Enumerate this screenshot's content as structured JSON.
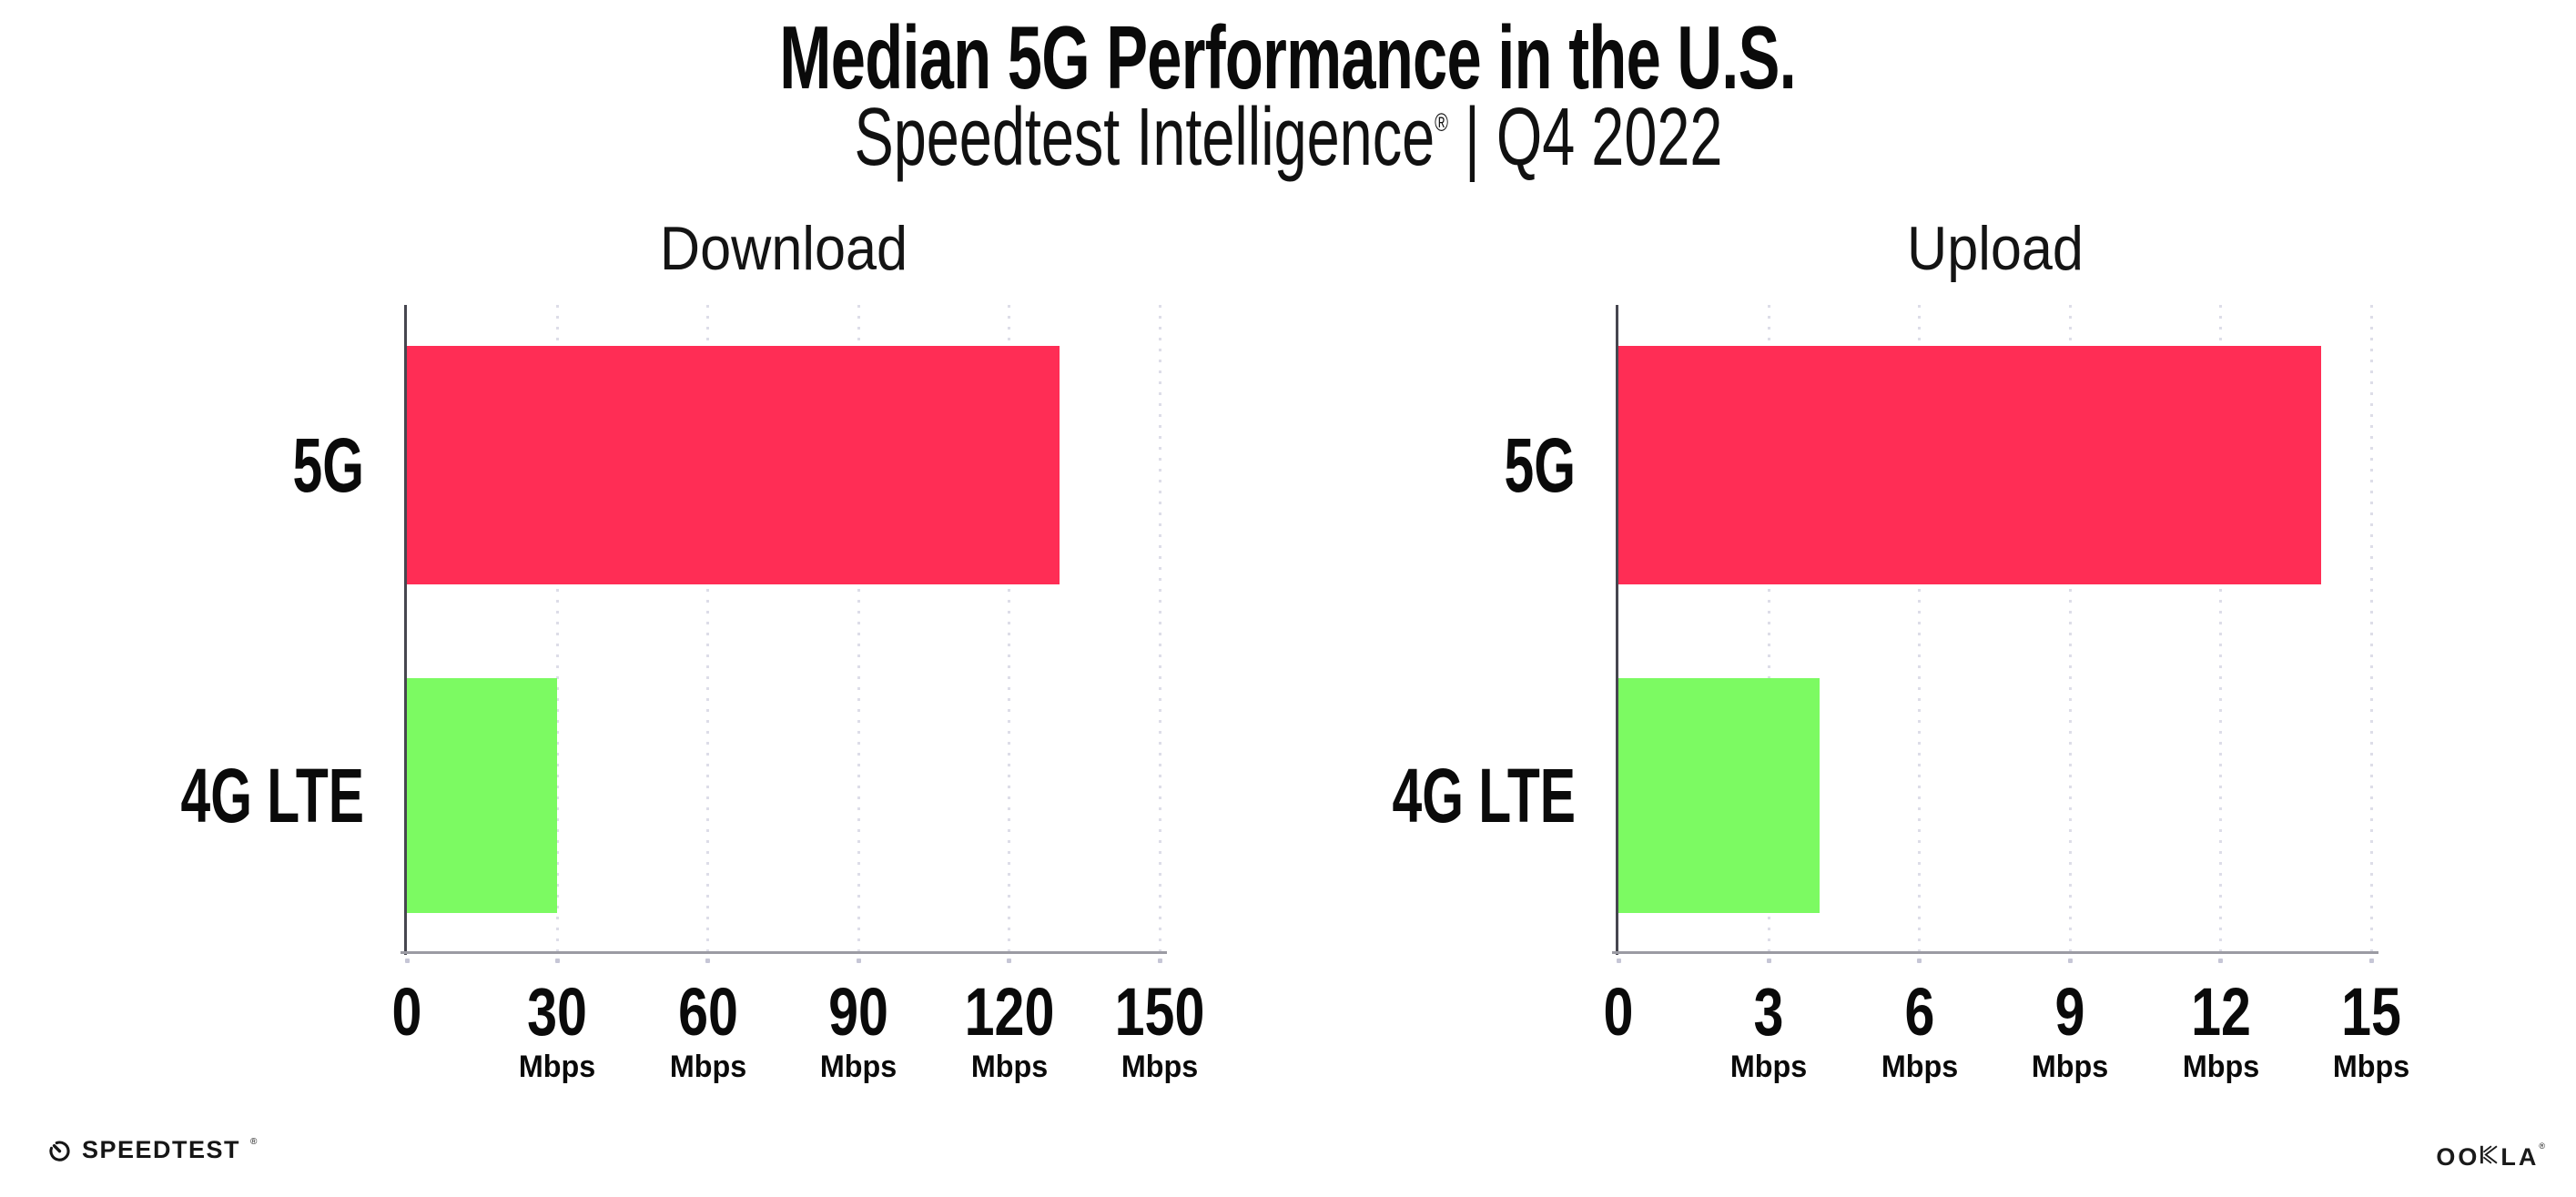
{
  "header": {
    "title": "Median 5G Performance in the U.S.",
    "subtitle_brand": "Speedtest Intelligence",
    "subtitle_registered": "®",
    "subtitle_period": " | Q4 2022"
  },
  "chart_data": [
    {
      "type": "bar",
      "orientation": "horizontal",
      "title": "Download",
      "categories": [
        "5G",
        "4G LTE"
      ],
      "values": [
        130,
        30
      ],
      "unit": "Mbps",
      "xlim": [
        0,
        150
      ],
      "xticks": [
        0,
        30,
        60,
        90,
        120,
        150
      ],
      "xtick_unit": "Mbps",
      "grid": "vertical-dotted",
      "legend": "none",
      "bar_colors": [
        "#FF2D55",
        "#7CFA62"
      ]
    },
    {
      "type": "bar",
      "orientation": "horizontal",
      "title": "Upload",
      "categories": [
        "5G",
        "4G LTE"
      ],
      "values": [
        14,
        4
      ],
      "unit": "Mbps",
      "xlim": [
        0,
        15
      ],
      "xticks": [
        0,
        3,
        6,
        9,
        12,
        15
      ],
      "xtick_unit": "Mbps",
      "grid": "vertical-dotted",
      "legend": "none",
      "bar_colors": [
        "#FF2D55",
        "#7CFA62"
      ]
    }
  ],
  "colors": {
    "bar_5g": "#FF2D55",
    "bar_4g_lte": "#7CFA62",
    "y_spine": "#46464F",
    "x_spine": "#9B9BA3",
    "gridline": "#DDDDE8",
    "tick_dot": "#C6C6D6",
    "text": "#0A0A0A"
  },
  "footer": {
    "speedtest_label": "SPEEDTEST",
    "speedtest_registered": "®",
    "ookla_prefix": "OO",
    "ookla_suffix": "LA",
    "ookla_registered": "®"
  }
}
